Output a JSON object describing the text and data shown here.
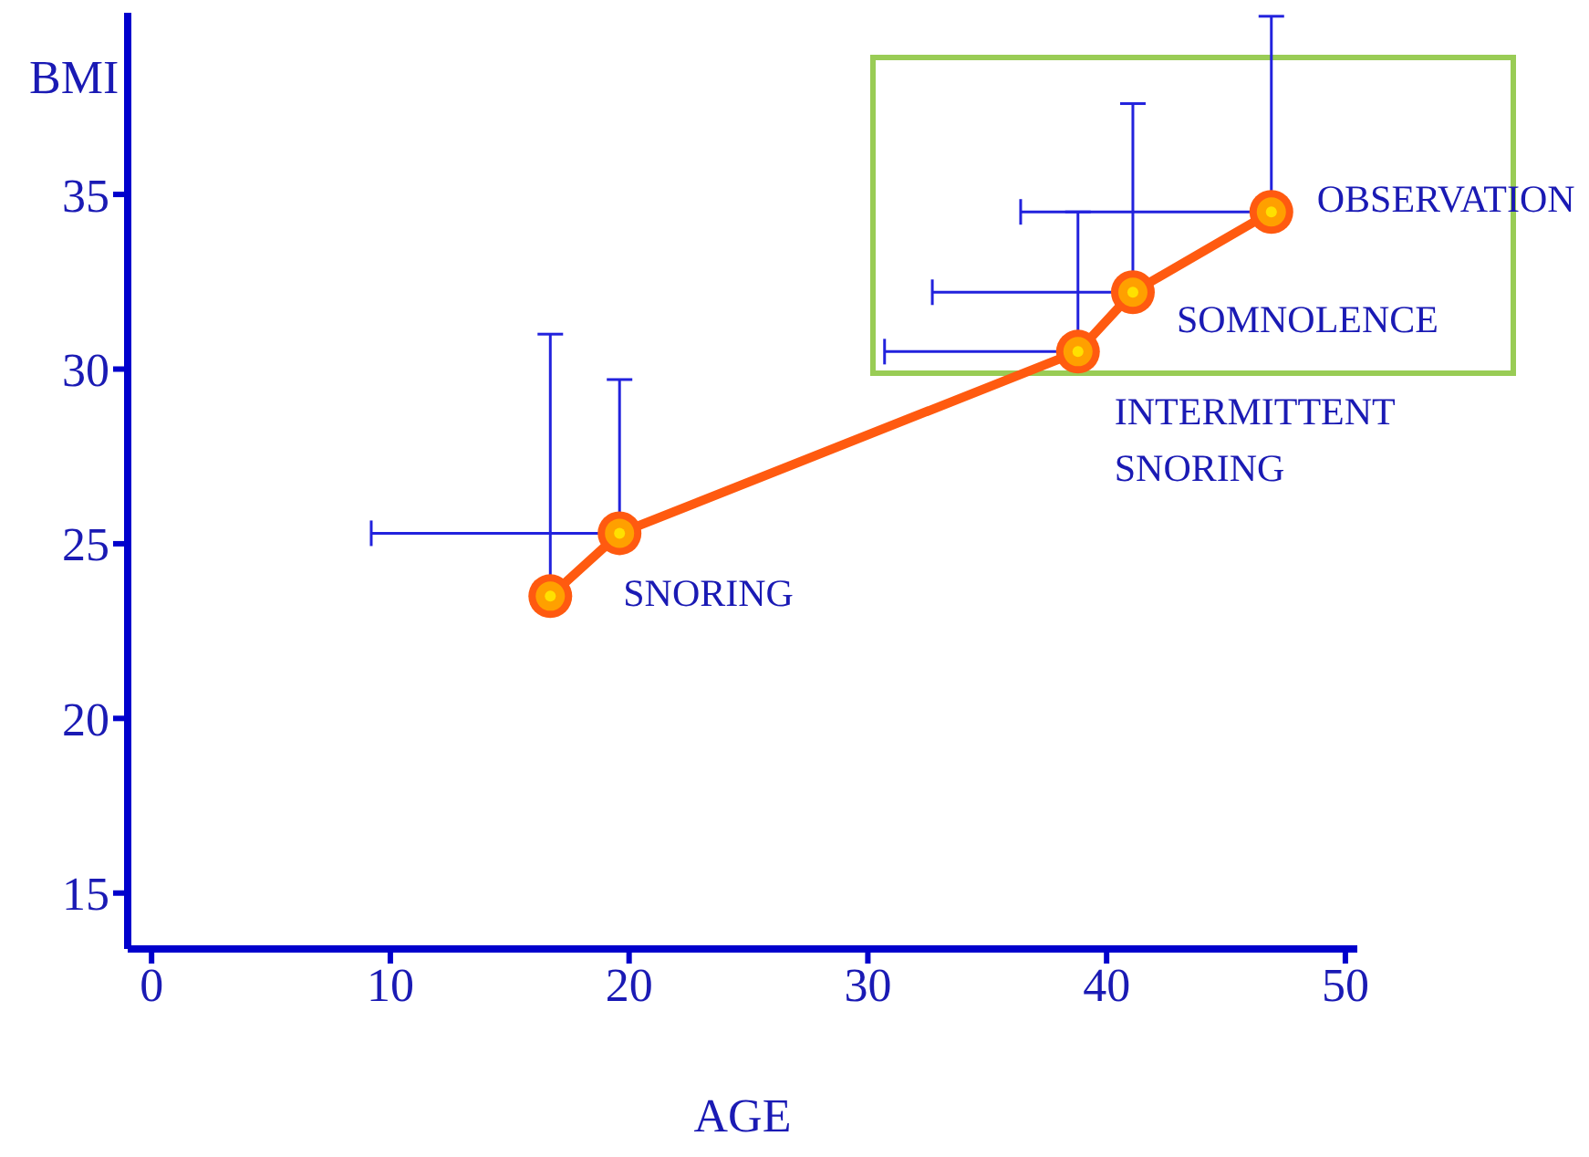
{
  "chart_data": {
    "type": "line",
    "xlabel": "AGE",
    "ylabel": "BMI",
    "x": [
      16.7,
      19.6,
      38.8,
      41.1,
      46.9
    ],
    "series": [
      {
        "color": "#ff5a10",
        "values": [
          23.5,
          25.3,
          30.5,
          32.2,
          34.5
        ],
        "errors": [
          [
            23.5,
            31.0
          ],
          [
            25.3,
            29.7
          ],
          [
            30.5,
            34.5
          ],
          [
            32.2,
            37.6
          ],
          [
            34.5,
            40.1
          ]
        ],
        "xerrors": [
          null,
          [
            9.2,
            19.6
          ],
          [
            30.7,
            38.8
          ],
          [
            32.7,
            41.1
          ],
          [
            36.4,
            46.9
          ]
        ]
      }
    ],
    "xlim": [
      -1,
      50.5
    ],
    "xticks": [
      0,
      10,
      20,
      30,
      40,
      50
    ],
    "ylim": [
      13.4,
      40.2
    ],
    "yticks": [
      15,
      20,
      25,
      30,
      35
    ],
    "grid": false,
    "marker": "circle",
    "line_style": "solid",
    "annotations": [
      {
        "text": "SNORING",
        "x": 19.6,
        "y": 25.3
      },
      {
        "text": "INTERMITTENT SNORING",
        "x": 38.8,
        "y": 30.5
      },
      {
        "text": "SOMNOLENCE",
        "x": 41.1,
        "y": 32.2
      },
      {
        "text": "OBSERVATION",
        "x": 46.9,
        "y": 34.5
      }
    ]
  }
}
